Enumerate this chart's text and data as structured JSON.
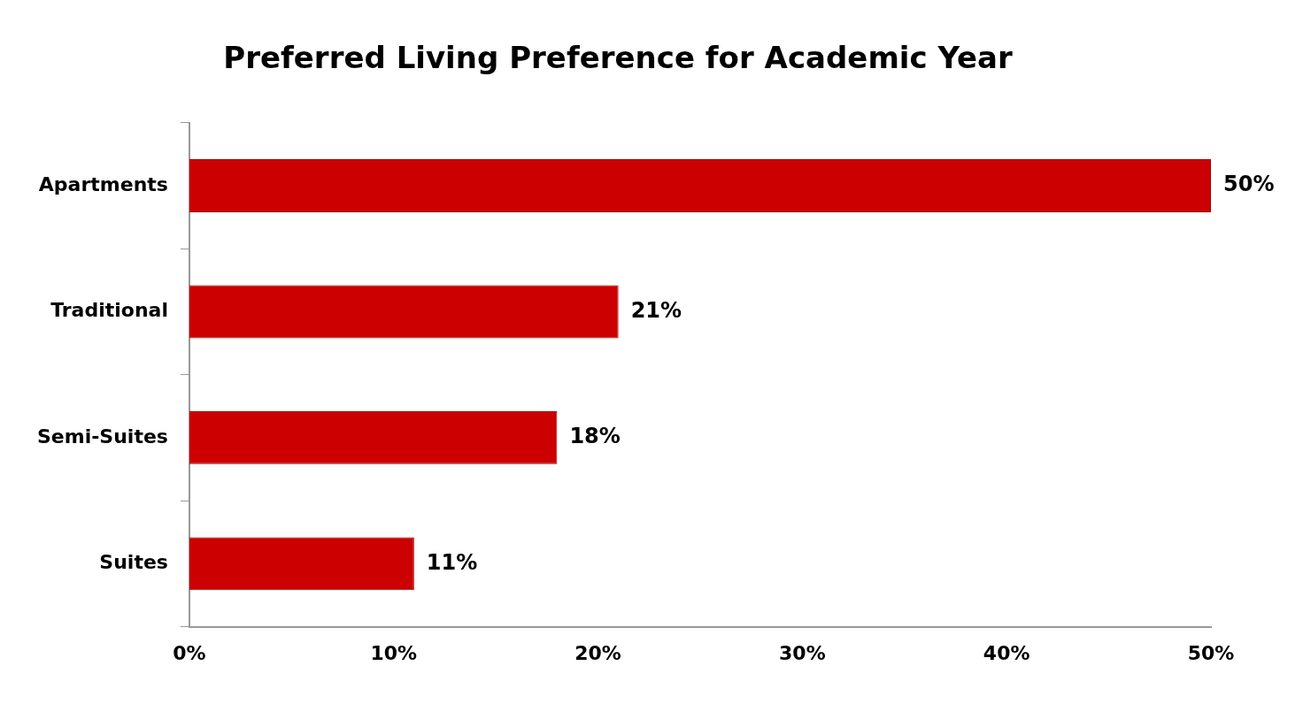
{
  "chart_data": {
    "type": "bar",
    "orientation": "horizontal",
    "title": "Preferred Living Preference for Academic Year",
    "categories": [
      "Apartments",
      "Traditional",
      "Semi-Suites",
      "Suites"
    ],
    "values": [
      50,
      21,
      18,
      11
    ],
    "color": "#cc0000",
    "value_labels": [
      "50%",
      "21%",
      "18%",
      "11%"
    ],
    "xlim": [
      0,
      50
    ],
    "xticks": [
      {
        "value": 0,
        "label": "0%"
      },
      {
        "value": 10,
        "label": "10%"
      },
      {
        "value": 20,
        "label": "20%"
      },
      {
        "value": 30,
        "label": "30%"
      },
      {
        "value": 40,
        "label": "40%"
      },
      {
        "value": 50,
        "label": "50%"
      }
    ],
    "grid": false,
    "legend": false
  }
}
